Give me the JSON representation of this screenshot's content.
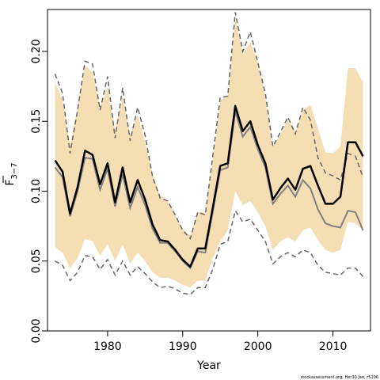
{
  "chart_data": {
    "type": "line",
    "xlabel": "Year",
    "ylabel_main": "F",
    "ylabel_sub": "3−7",
    "xlim": [
      1972,
      2015
    ],
    "ylim": [
      0,
      0.23
    ],
    "x_ticks": [
      1980,
      1990,
      2000,
      2010
    ],
    "y_ticks": [
      0.0,
      0.05,
      0.1,
      0.15,
      0.2
    ],
    "x_tick_labels": [
      "1980",
      "1990",
      "2000",
      "2010"
    ],
    "y_tick_labels": [
      "0.00",
      "0.05",
      "0.10",
      "0.15",
      "0.20"
    ],
    "credit": "stockassessment.org, Her30 Jan, r5106",
    "colors": {
      "band": "#f5deb3",
      "estimate": "#000000",
      "gray_series": "#808080",
      "dashed_ci": "#666666"
    },
    "series": [
      {
        "style": "band",
        "x": [
          1973,
          1974,
          1975,
          1976,
          1977,
          1978,
          1979,
          1980,
          1981,
          1982,
          1983,
          1984,
          1985,
          1986,
          1987,
          1988,
          1989,
          1990,
          1991,
          1992,
          1993,
          1994,
          1995,
          1996,
          1997,
          1998,
          1999,
          2000,
          2001,
          2002,
          2003,
          2004,
          2005,
          2006,
          2007,
          2008,
          2009,
          2010,
          2011,
          2012,
          2013,
          2014
        ],
        "lower": [
          0.06,
          0.056,
          0.045,
          0.052,
          0.066,
          0.064,
          0.054,
          0.062,
          0.05,
          0.062,
          0.048,
          0.056,
          0.05,
          0.042,
          0.038,
          0.038,
          0.036,
          0.033,
          0.031,
          0.036,
          0.036,
          0.052,
          0.064,
          0.072,
          0.1,
          0.09,
          0.093,
          0.085,
          0.075,
          0.058,
          0.064,
          0.067,
          0.064,
          0.072,
          0.074,
          0.065,
          0.058,
          0.056,
          0.058,
          0.078,
          0.077,
          0.072
        ],
        "upper": [
          0.178,
          0.165,
          0.133,
          0.16,
          0.19,
          0.185,
          0.16,
          0.175,
          0.143,
          0.168,
          0.14,
          0.155,
          0.135,
          0.112,
          0.097,
          0.093,
          0.083,
          0.073,
          0.068,
          0.085,
          0.085,
          0.122,
          0.165,
          0.168,
          0.225,
          0.198,
          0.207,
          0.192,
          0.168,
          0.132,
          0.14,
          0.152,
          0.142,
          0.158,
          0.162,
          0.145,
          0.128,
          0.127,
          0.132,
          0.188,
          0.188,
          0.178
        ]
      },
      {
        "style": "dashed",
        "x": [
          1973,
          1974,
          1975,
          1976,
          1977,
          1978,
          1979,
          1980,
          1981,
          1982,
          1983,
          1984,
          1985,
          1986,
          1987,
          1988,
          1989,
          1990,
          1991,
          1992,
          1993,
          1994,
          1995,
          1996,
          1997,
          1998,
          1999,
          2000,
          2001,
          2002,
          2003,
          2004,
          2005,
          2006,
          2007,
          2008,
          2009,
          2010,
          2011,
          2012,
          2013,
          2014
        ],
        "values": [
          0.184,
          0.17,
          0.127,
          0.158,
          0.193,
          0.191,
          0.158,
          0.182,
          0.138,
          0.174,
          0.136,
          0.16,
          0.14,
          0.11,
          0.095,
          0.093,
          0.083,
          0.072,
          0.066,
          0.085,
          0.083,
          0.125,
          0.167,
          0.168,
          0.228,
          0.2,
          0.214,
          0.192,
          0.17,
          0.132,
          0.142,
          0.153,
          0.141,
          0.16,
          0.151,
          0.124,
          0.113,
          0.111,
          0.108,
          0.127,
          0.125,
          0.11
        ]
      },
      {
        "style": "dashed",
        "x": [
          1973,
          1974,
          1975,
          1976,
          1977,
          1978,
          1979,
          1980,
          1981,
          1982,
          1983,
          1984,
          1985,
          1986,
          1987,
          1988,
          1989,
          1990,
          1991,
          1992,
          1993,
          1994,
          1995,
          1996,
          1997,
          1998,
          1999,
          2000,
          2001,
          2002,
          2003,
          2004,
          2005,
          2006,
          2007,
          2008,
          2009,
          2010,
          2011,
          2012,
          2013,
          2014
        ],
        "values": [
          0.05,
          0.047,
          0.036,
          0.042,
          0.054,
          0.053,
          0.044,
          0.051,
          0.04,
          0.05,
          0.04,
          0.046,
          0.041,
          0.035,
          0.031,
          0.032,
          0.03,
          0.027,
          0.026,
          0.031,
          0.031,
          0.044,
          0.062,
          0.064,
          0.086,
          0.078,
          0.08,
          0.072,
          0.064,
          0.048,
          0.053,
          0.056,
          0.053,
          0.058,
          0.056,
          0.047,
          0.042,
          0.041,
          0.04,
          0.045,
          0.045,
          0.039
        ]
      },
      {
        "style": "gray",
        "x": [
          1973,
          1974,
          1975,
          1976,
          1977,
          1978,
          1979,
          1980,
          1981,
          1982,
          1983,
          1984,
          1985,
          1986,
          1987,
          1988,
          1989,
          1990,
          1991,
          1992,
          1993,
          1994,
          1995,
          1996,
          1997,
          1998,
          1999,
          2000,
          2001,
          2002,
          2003,
          2004,
          2005,
          2006,
          2007,
          2008,
          2009,
          2010,
          2011,
          2012,
          2013,
          2014
        ],
        "values": [
          0.117,
          0.11,
          0.082,
          0.1,
          0.124,
          0.123,
          0.101,
          0.116,
          0.089,
          0.112,
          0.088,
          0.103,
          0.09,
          0.073,
          0.063,
          0.063,
          0.057,
          0.05,
          0.045,
          0.057,
          0.056,
          0.085,
          0.115,
          0.117,
          0.157,
          0.139,
          0.146,
          0.13,
          0.117,
          0.091,
          0.098,
          0.104,
          0.096,
          0.108,
          0.102,
          0.087,
          0.077,
          0.075,
          0.074,
          0.086,
          0.085,
          0.072
        ]
      },
      {
        "style": "solid",
        "x": [
          1973,
          1974,
          1975,
          1976,
          1977,
          1978,
          1979,
          1980,
          1981,
          1982,
          1983,
          1984,
          1985,
          1986,
          1987,
          1988,
          1989,
          1990,
          1991,
          1992,
          1993,
          1994,
          1995,
          1996,
          1997,
          1998,
          1999,
          2000,
          2001,
          2002,
          2003,
          2004,
          2005,
          2006,
          2007,
          2008,
          2009,
          2010,
          2011,
          2012,
          2013,
          2014
        ],
        "values": [
          0.122,
          0.114,
          0.084,
          0.103,
          0.129,
          0.126,
          0.105,
          0.12,
          0.092,
          0.117,
          0.092,
          0.108,
          0.094,
          0.076,
          0.065,
          0.064,
          0.058,
          0.051,
          0.046,
          0.059,
          0.059,
          0.088,
          0.118,
          0.12,
          0.161,
          0.143,
          0.15,
          0.133,
          0.12,
          0.094,
          0.102,
          0.109,
          0.101,
          0.116,
          0.118,
          0.104,
          0.091,
          0.091,
          0.096,
          0.135,
          0.135,
          0.125
        ]
      }
    ]
  }
}
